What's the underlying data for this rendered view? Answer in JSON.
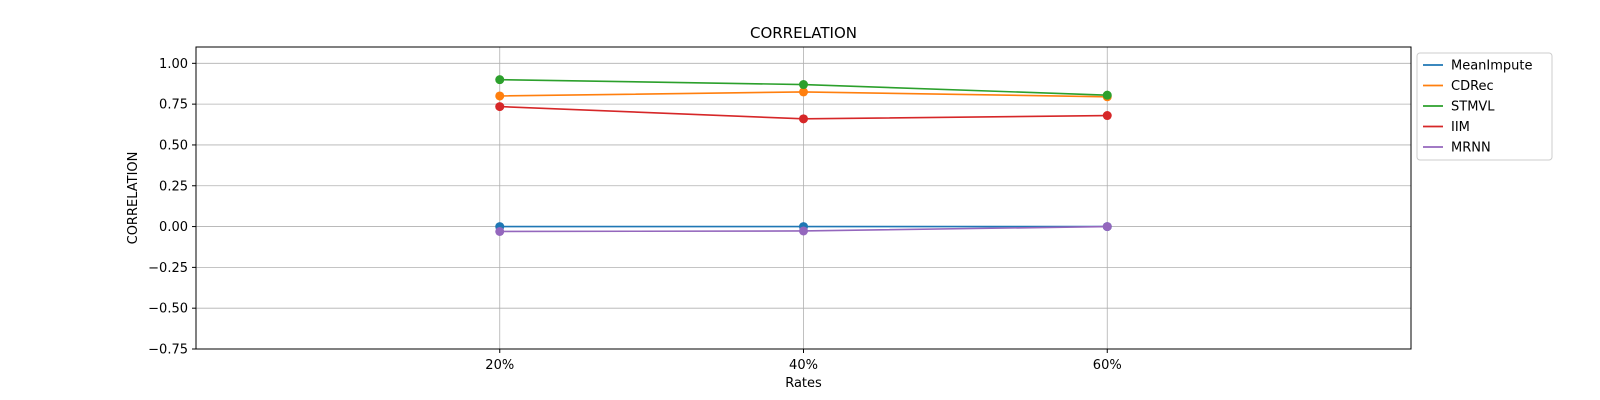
{
  "chart_data": {
    "type": "line",
    "title": "CORRELATION",
    "xlabel": "Rates",
    "ylabel": "CORRELATION",
    "categories": [
      "20%",
      "40%",
      "60%"
    ],
    "xlim": [
      -1,
      3
    ],
    "ylim": [
      -0.75,
      1.1
    ],
    "yticks": [
      1.0,
      0.75,
      0.5,
      0.25,
      0.0,
      -0.25,
      -0.5,
      -0.75
    ],
    "ytick_labels": [
      "1.00",
      "0.75",
      "0.50",
      "0.25",
      "0.00",
      "−0.25",
      "−0.50",
      "−0.75"
    ],
    "grid": true,
    "legend_position": "outside top-right",
    "series": [
      {
        "name": "MeanImpute",
        "color": "#1f77b4",
        "values": [
          0.0,
          0.0,
          0.0
        ]
      },
      {
        "name": "CDRec",
        "color": "#ff7f0e",
        "values": [
          0.8,
          0.825,
          0.795
        ]
      },
      {
        "name": "STMVL",
        "color": "#2ca02c",
        "values": [
          0.9,
          0.87,
          0.805
        ]
      },
      {
        "name": "IIM",
        "color": "#d62728",
        "values": [
          0.735,
          0.66,
          0.68
        ]
      },
      {
        "name": "MRNN",
        "color": "#9467bd",
        "values": [
          -0.03,
          -0.027,
          0.0
        ]
      }
    ]
  }
}
